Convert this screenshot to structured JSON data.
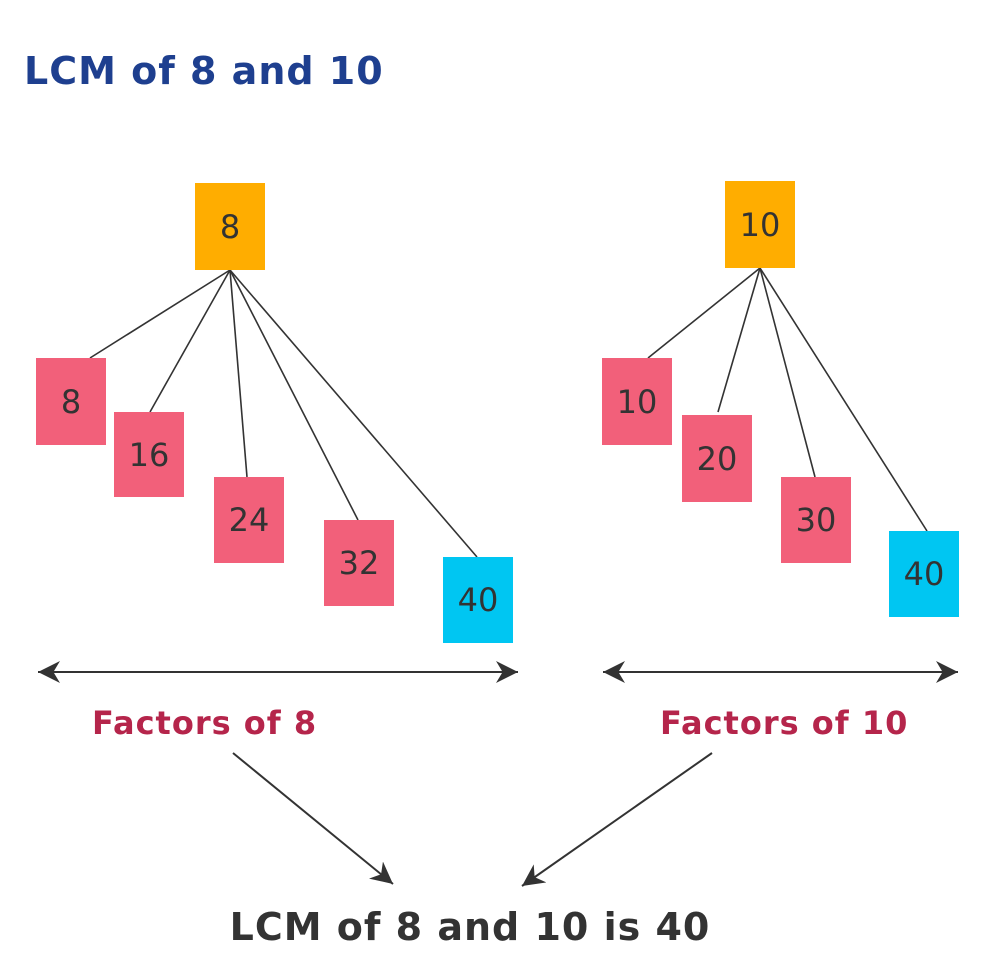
{
  "title": "LCM of 8 and 10",
  "colors": {
    "title": "#1e3f8f",
    "root": "#ffad00",
    "multiple": "#f2607a",
    "common": "#00c6f2",
    "caption": "#b5254b",
    "text": "#333333"
  },
  "tree_left": {
    "root": "8",
    "children": [
      "8",
      "16",
      "24",
      "32",
      "40"
    ],
    "caption": "Factors of 8"
  },
  "tree_right": {
    "root": "10",
    "children": [
      "10",
      "20",
      "30",
      "40"
    ],
    "caption": "Factors of 10"
  },
  "result": "LCM of 8 and 10 is 40"
}
